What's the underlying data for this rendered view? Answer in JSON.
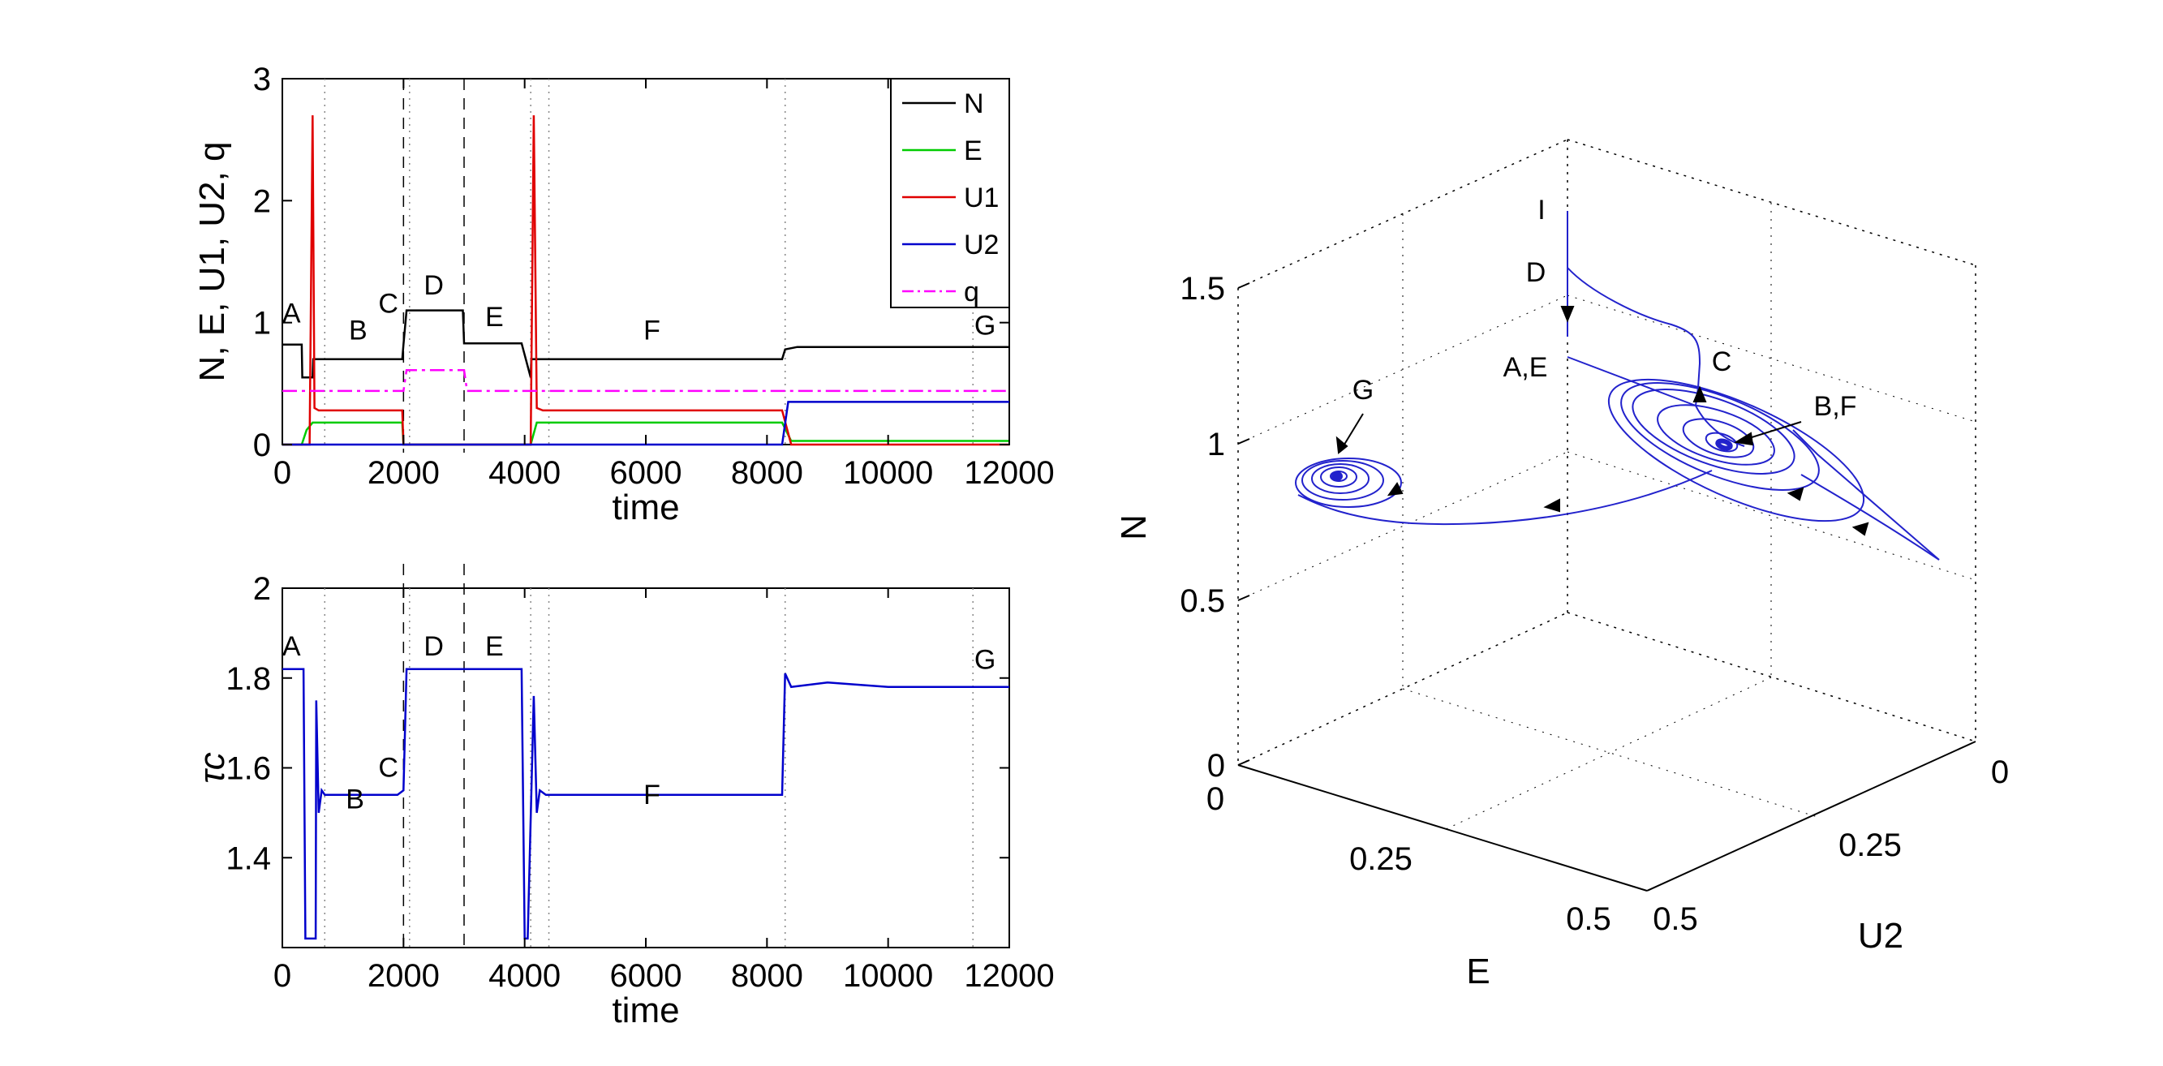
{
  "chart_data": [
    {
      "type": "line",
      "panel": "top",
      "xlabel": "time",
      "ylabel": "N, E, U1, U2, q",
      "xlim": [
        0,
        12000
      ],
      "ylim": [
        0,
        3
      ],
      "xticks": [
        0,
        2000,
        4000,
        6000,
        8000,
        10000,
        12000
      ],
      "yticks": [
        0,
        1,
        2,
        3
      ],
      "phase_dashed_lines": [
        2000,
        3000
      ],
      "phase_dotted_lines": [
        700,
        2100,
        4100,
        4400,
        8300,
        11400
      ],
      "region_labels": [
        {
          "text": "A",
          "x": 150,
          "y": 1.0
        },
        {
          "text": "B",
          "x": 1250,
          "y": 0.86
        },
        {
          "text": "C",
          "x": 1750,
          "y": 1.08
        },
        {
          "text": "D",
          "x": 2500,
          "y": 1.23
        },
        {
          "text": "E",
          "x": 3500,
          "y": 0.97
        },
        {
          "text": "F",
          "x": 6100,
          "y": 0.86
        },
        {
          "text": "G",
          "x": 11600,
          "y": 0.9
        }
      ],
      "series": [
        {
          "name": "N",
          "color": "#000000",
          "x": [
            0,
            320,
            330,
            500,
            510,
            1980,
            2000,
            2050,
            2100,
            2980,
            3000,
            3950,
            4100,
            4110,
            8250,
            8300,
            8500,
            9000,
            10000,
            12000
          ],
          "y": [
            0.82,
            0.82,
            0.55,
            0.55,
            0.7,
            0.7,
            0.82,
            1.1,
            1.1,
            1.1,
            0.83,
            0.83,
            0.55,
            0.7,
            0.7,
            0.78,
            0.8,
            0.8,
            0.8,
            0.8
          ]
        },
        {
          "name": "E",
          "color": "#00cc00",
          "x": [
            0,
            320,
            400,
            500,
            1980,
            2000,
            4100,
            4200,
            8250,
            8400,
            12000
          ],
          "y": [
            0.0,
            0.0,
            0.12,
            0.18,
            0.18,
            0.0,
            0.0,
            0.18,
            0.18,
            0.03,
            0.03
          ]
        },
        {
          "name": "U1",
          "color": "#e00000",
          "x": [
            0,
            450,
            500,
            530,
            600,
            1980,
            2000,
            4100,
            4150,
            4200,
            4300,
            8250,
            8400,
            12000
          ],
          "y": [
            0.0,
            0.0,
            2.7,
            0.3,
            0.28,
            0.28,
            0.0,
            0.0,
            2.7,
            0.3,
            0.28,
            0.28,
            0.0,
            0.0
          ]
        },
        {
          "name": "U2",
          "color": "#0000cc",
          "x": [
            0,
            8250,
            8350,
            12000
          ],
          "y": [
            0.0,
            0.0,
            0.35,
            0.35
          ]
        },
        {
          "name": "q",
          "color": "#ff00ff",
          "x": [
            0,
            2000,
            2050,
            3000,
            3050,
            12000
          ],
          "y": [
            0.44,
            0.44,
            0.61,
            0.61,
            0.44,
            0.44
          ]
        }
      ],
      "legend": [
        "N",
        "E",
        "U1",
        "U2",
        "q"
      ],
      "legend_position": "top-right"
    },
    {
      "type": "line",
      "panel": "bottom",
      "xlabel": "time",
      "ylabel": "τc",
      "xlim": [
        0,
        12000
      ],
      "ylim": [
        1.2,
        2.0
      ],
      "xticks": [
        0,
        2000,
        4000,
        6000,
        8000,
        10000,
        12000
      ],
      "yticks": [
        1.4,
        1.6,
        1.8,
        2
      ],
      "phase_dashed_lines": [
        2000,
        3000
      ],
      "phase_dotted_lines": [
        700,
        2100,
        4100,
        4400,
        8300,
        11400
      ],
      "region_labels": [
        {
          "text": "A",
          "x": 150,
          "y": 1.85
        },
        {
          "text": "B",
          "x": 1200,
          "y": 1.51
        },
        {
          "text": "C",
          "x": 1750,
          "y": 1.58
        },
        {
          "text": "D",
          "x": 2500,
          "y": 1.85
        },
        {
          "text": "E",
          "x": 3500,
          "y": 1.85
        },
        {
          "text": "F",
          "x": 6100,
          "y": 1.52
        },
        {
          "text": "G",
          "x": 11600,
          "y": 1.82
        }
      ],
      "series": [
        {
          "name": "τc",
          "color": "#0000cc",
          "x": [
            0,
            350,
            380,
            550,
            560,
            600,
            650,
            700,
            1900,
            2000,
            2050,
            3950,
            4000,
            4050,
            4150,
            4200,
            4250,
            4350,
            8250,
            8300,
            8400,
            9000,
            10000,
            12000
          ],
          "y": [
            1.82,
            1.82,
            1.22,
            1.22,
            1.75,
            1.5,
            1.55,
            1.54,
            1.54,
            1.55,
            1.82,
            1.82,
            1.22,
            1.22,
            1.76,
            1.5,
            1.55,
            1.54,
            1.54,
            1.81,
            1.78,
            1.79,
            1.78,
            1.78
          ]
        }
      ]
    },
    {
      "type": "line",
      "panel": "3d",
      "xlabel": "E",
      "ylabel": "U2",
      "zlabel": "N",
      "xlim": [
        0,
        0.5
      ],
      "ylim": [
        0,
        0.5
      ],
      "zlim": [
        0,
        1.5
      ],
      "xticks": [
        "0",
        "0.25",
        "0.5"
      ],
      "yticks": [
        "0",
        "0.25",
        "0.5"
      ],
      "zticks": [
        "0",
        "0.5",
        "1",
        "1.5"
      ],
      "color": "#0000cc",
      "point_labels": [
        "I",
        "D",
        "A,E",
        "C",
        "B,F",
        "G"
      ]
    }
  ]
}
